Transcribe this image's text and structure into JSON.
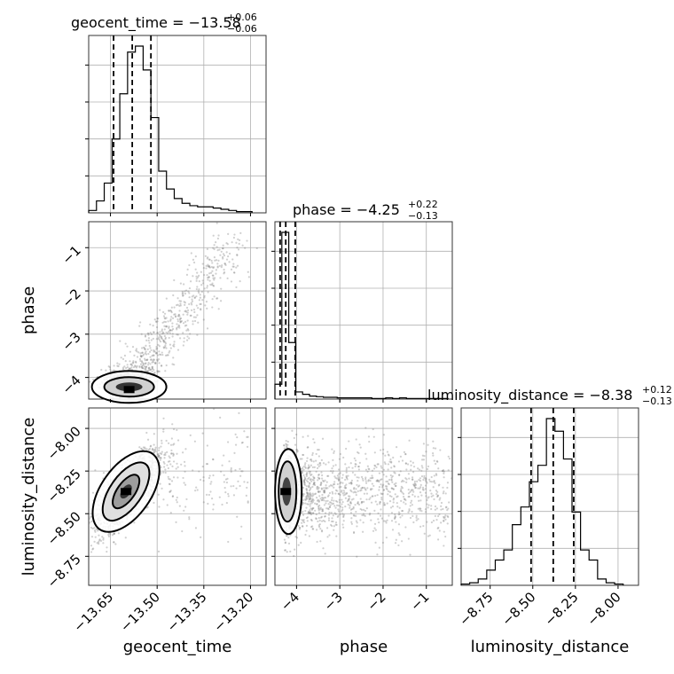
{
  "chart_data": {
    "type": "corner",
    "parameters": [
      "geocent_time",
      "phase",
      "luminosity_distance"
    ],
    "panel_titles": [
      {
        "param": "geocent_time",
        "label": "geocent_time",
        "median": "−13.58",
        "plus": "+0.06",
        "minus": "−0.06"
      },
      {
        "param": "phase",
        "label": "phase",
        "median": "−4.25",
        "plus": "+0.22",
        "minus": "−0.13"
      },
      {
        "param": "luminosity_distance",
        "label": "luminosity_distance",
        "median": "−8.38",
        "plus": "+0.12",
        "minus": "−0.13"
      }
    ],
    "axis_labels": {
      "x": [
        "geocent_time",
        "phase",
        "luminosity_distance"
      ],
      "y": [
        "phase",
        "luminosity_distance"
      ]
    },
    "ranges": {
      "geocent_time": [
        -13.72,
        -13.15
      ],
      "phase": [
        -4.5,
        -0.4
      ],
      "luminosity_distance": [
        -8.92,
        -7.88
      ]
    },
    "ticks": {
      "geocent_time": [
        "−13.65",
        "−13.50",
        "−13.35",
        "−13.20"
      ],
      "phase": [
        "−4",
        "−3",
        "−2",
        "−1"
      ],
      "luminosity_distance": [
        "−8.75",
        "−8.50",
        "−8.25",
        "−8.00"
      ]
    },
    "tick_values": {
      "geocent_time": [
        -13.65,
        -13.5,
        -13.35,
        -13.2
      ],
      "phase": [
        -4,
        -3,
        -2,
        -1
      ],
      "luminosity_distance": [
        -8.75,
        -8.5,
        -8.25,
        -8.0
      ]
    },
    "quantile_lines": {
      "geocent_time": [
        -13.64,
        -13.58,
        -13.52
      ],
      "phase": [
        -4.38,
        -4.25,
        -4.03
      ],
      "luminosity_distance": [
        -8.51,
        -8.38,
        -8.26
      ]
    },
    "histograms": {
      "geocent_time": {
        "edges": [
          -13.72,
          -13.695,
          -13.67,
          -13.645,
          -13.62,
          -13.595,
          -13.57,
          -13.545,
          -13.52,
          -13.495,
          -13.47,
          -13.445,
          -13.42,
          -13.395,
          -13.37,
          -13.345,
          -13.32,
          -13.295,
          -13.27,
          -13.245,
          -13.22,
          -13.195
        ],
        "counts": [
          2,
          10,
          25,
          62,
          100,
          135,
          140,
          120,
          80,
          35,
          20,
          12,
          8,
          6,
          5,
          5,
          4,
          3,
          2,
          1,
          1
        ]
      },
      "phase": {
        "edges": [
          -4.5,
          -4.34,
          -4.18,
          -4.02,
          -3.86,
          -3.7,
          -3.54,
          -3.38,
          -3.22,
          -3.06,
          -2.9,
          -2.74,
          -2.58,
          -2.42,
          -2.26,
          -2.1,
          -1.94,
          -1.78,
          -1.62,
          -1.46,
          -1.3,
          -1.14,
          -0.98,
          -0.82,
          -0.66,
          -0.5
        ],
        "counts": [
          25,
          280,
          95,
          12,
          8,
          5,
          4,
          3,
          3,
          2,
          2,
          2,
          2,
          2,
          1,
          1,
          2,
          1,
          2,
          1,
          1,
          1,
          1,
          1,
          1
        ]
      },
      "luminosity_distance": {
        "edges": [
          -8.92,
          -8.87,
          -8.82,
          -8.77,
          -8.72,
          -8.67,
          -8.62,
          -8.57,
          -8.52,
          -8.47,
          -8.42,
          -8.37,
          -8.32,
          -8.27,
          -8.22,
          -8.17,
          -8.12,
          -8.07,
          -8.02,
          -7.97
        ],
        "counts": [
          1,
          2,
          5,
          12,
          20,
          28,
          48,
          62,
          82,
          95,
          132,
          122,
          100,
          58,
          28,
          20,
          5,
          2,
          1
        ]
      }
    },
    "pair_panels": [
      {
        "x": "geocent_time",
        "y": "phase",
        "center": [
          -13.59,
          -4.28
        ]
      },
      {
        "x": "geocent_time",
        "y": "luminosity_distance",
        "center": [
          -13.6,
          -8.37
        ]
      },
      {
        "x": "phase",
        "y": "luminosity_distance",
        "center": [
          -4.25,
          -8.37
        ]
      }
    ],
    "grid": true,
    "colors": {
      "line": "#000000",
      "grid": "#b0b0b0",
      "samples": "#777777"
    }
  }
}
